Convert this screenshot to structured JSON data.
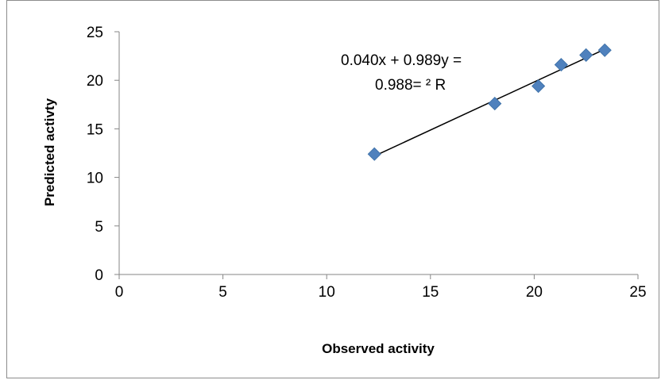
{
  "chart_data": {
    "type": "scatter",
    "title": "",
    "xlabel": "Observed activity",
    "ylabel": "Predicted  activty",
    "xlim": [
      0,
      25
    ],
    "ylim": [
      0,
      25
    ],
    "xticks": [
      "0",
      "5",
      "10",
      "15",
      "20",
      "25"
    ],
    "yticks": [
      "0",
      "5",
      "10",
      "15",
      "20",
      "25"
    ],
    "grid": false,
    "legend": "none",
    "marker": "diamond",
    "marker_color": "#4f81bd",
    "series": [
      {
        "x": [
          12.3,
          18.1,
          20.2,
          21.3,
          22.5,
          23.4
        ],
        "y": [
          12.4,
          17.6,
          19.4,
          21.6,
          22.6,
          23.1
        ]
      }
    ],
    "trendline": {
      "x": [
        12.3,
        23.4
      ],
      "y": [
        12.2,
        23.2
      ],
      "color": "#000000"
    },
    "annotation": {
      "line1": "0.040x + 0.989y =",
      "line2": "0.988= ² R"
    }
  }
}
